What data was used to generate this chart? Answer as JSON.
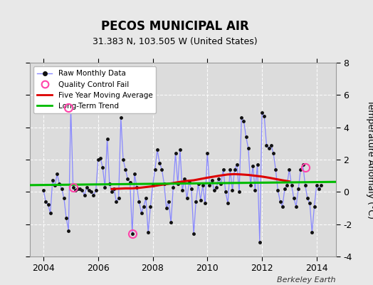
{
  "title": "PECOS MUNICIPAL AIR",
  "subtitle": "31.383 N, 103.505 W (United States)",
  "ylabel": "Temperature Anomaly (°C)",
  "credit": "Berkeley Earth",
  "ylim": [
    -4,
    8
  ],
  "yticks": [
    -4,
    -2,
    0,
    2,
    4,
    6,
    8
  ],
  "xlim": [
    2003.5,
    2014.7
  ],
  "xticks": [
    2004,
    2006,
    2008,
    2010,
    2012,
    2014
  ],
  "bg_color": "#e8e8e8",
  "plot_bg_color": "#dcdcdc",
  "raw_line_color": "#8888ff",
  "raw_marker_color": "#111111",
  "ma_color": "#dd0000",
  "trend_color": "#00bb00",
  "qc_color": "#ff44aa",
  "raw_data": [
    [
      2004.0,
      0.1
    ],
    [
      2004.083,
      -0.6
    ],
    [
      2004.167,
      -0.8
    ],
    [
      2004.25,
      -1.3
    ],
    [
      2004.333,
      0.7
    ],
    [
      2004.417,
      0.4
    ],
    [
      2004.5,
      1.1
    ],
    [
      2004.583,
      0.5
    ],
    [
      2004.667,
      0.2
    ],
    [
      2004.75,
      -0.4
    ],
    [
      2004.833,
      -1.6
    ],
    [
      2004.917,
      -2.4
    ],
    [
      2005.0,
      5.2
    ],
    [
      2005.083,
      0.3
    ],
    [
      2005.167,
      0.1
    ],
    [
      2005.25,
      0.2
    ],
    [
      2005.333,
      0.2
    ],
    [
      2005.417,
      0.1
    ],
    [
      2005.5,
      -0.2
    ],
    [
      2005.583,
      0.3
    ],
    [
      2005.667,
      0.1
    ],
    [
      2005.75,
      0.0
    ],
    [
      2005.833,
      -0.2
    ],
    [
      2005.917,
      0.1
    ],
    [
      2006.0,
      2.0
    ],
    [
      2006.083,
      2.1
    ],
    [
      2006.167,
      1.5
    ],
    [
      2006.25,
      0.3
    ],
    [
      2006.333,
      3.3
    ],
    [
      2006.417,
      0.5
    ],
    [
      2006.5,
      0.0
    ],
    [
      2006.583,
      0.2
    ],
    [
      2006.667,
      -0.6
    ],
    [
      2006.75,
      -0.4
    ],
    [
      2006.833,
      4.6
    ],
    [
      2006.917,
      2.0
    ],
    [
      2007.0,
      1.4
    ],
    [
      2007.083,
      0.8
    ],
    [
      2007.167,
      0.6
    ],
    [
      2007.25,
      -2.6
    ],
    [
      2007.333,
      1.1
    ],
    [
      2007.417,
      0.3
    ],
    [
      2007.5,
      -0.6
    ],
    [
      2007.583,
      -1.3
    ],
    [
      2007.667,
      -0.9
    ],
    [
      2007.75,
      -0.4
    ],
    [
      2007.833,
      -2.5
    ],
    [
      2007.917,
      -0.9
    ],
    [
      2008.0,
      0.4
    ],
    [
      2008.083,
      1.4
    ],
    [
      2008.167,
      2.6
    ],
    [
      2008.25,
      1.8
    ],
    [
      2008.333,
      1.4
    ],
    [
      2008.417,
      0.5
    ],
    [
      2008.5,
      -1.0
    ],
    [
      2008.583,
      -0.6
    ],
    [
      2008.667,
      -1.9
    ],
    [
      2008.75,
      0.3
    ],
    [
      2008.833,
      2.4
    ],
    [
      2008.917,
      0.5
    ],
    [
      2009.0,
      2.6
    ],
    [
      2009.083,
      0.1
    ],
    [
      2009.167,
      0.8
    ],
    [
      2009.25,
      -0.4
    ],
    [
      2009.333,
      0.6
    ],
    [
      2009.417,
      0.2
    ],
    [
      2009.5,
      -2.6
    ],
    [
      2009.583,
      -0.6
    ],
    [
      2009.667,
      0.5
    ],
    [
      2009.75,
      -0.5
    ],
    [
      2009.833,
      0.4
    ],
    [
      2009.917,
      -0.7
    ],
    [
      2010.0,
      2.4
    ],
    [
      2010.083,
      0.4
    ],
    [
      2010.167,
      0.7
    ],
    [
      2010.25,
      0.1
    ],
    [
      2010.333,
      0.3
    ],
    [
      2010.417,
      0.8
    ],
    [
      2010.5,
      0.5
    ],
    [
      2010.583,
      1.4
    ],
    [
      2010.667,
      0.0
    ],
    [
      2010.75,
      -0.7
    ],
    [
      2010.833,
      1.4
    ],
    [
      2010.917,
      0.1
    ],
    [
      2011.0,
      1.4
    ],
    [
      2011.083,
      1.7
    ],
    [
      2011.167,
      0.0
    ],
    [
      2011.25,
      4.6
    ],
    [
      2011.333,
      4.4
    ],
    [
      2011.417,
      3.4
    ],
    [
      2011.5,
      2.7
    ],
    [
      2011.583,
      0.4
    ],
    [
      2011.667,
      1.6
    ],
    [
      2011.75,
      0.1
    ],
    [
      2011.833,
      1.7
    ],
    [
      2011.917,
      -3.1
    ],
    [
      2012.0,
      4.9
    ],
    [
      2012.083,
      4.7
    ],
    [
      2012.167,
      2.9
    ],
    [
      2012.25,
      2.7
    ],
    [
      2012.333,
      2.9
    ],
    [
      2012.417,
      2.4
    ],
    [
      2012.5,
      1.4
    ],
    [
      2012.583,
      0.1
    ],
    [
      2012.667,
      -0.6
    ],
    [
      2012.75,
      -0.9
    ],
    [
      2012.833,
      0.2
    ],
    [
      2012.917,
      0.4
    ],
    [
      2013.0,
      1.4
    ],
    [
      2013.083,
      0.4
    ],
    [
      2013.167,
      -0.4
    ],
    [
      2013.25,
      -0.9
    ],
    [
      2013.333,
      0.2
    ],
    [
      2013.417,
      1.4
    ],
    [
      2013.5,
      1.7
    ],
    [
      2013.583,
      0.4
    ],
    [
      2013.667,
      -0.4
    ],
    [
      2013.75,
      -0.7
    ],
    [
      2013.833,
      -2.5
    ],
    [
      2013.917,
      -0.9
    ],
    [
      2014.0,
      0.4
    ],
    [
      2014.083,
      0.2
    ],
    [
      2014.167,
      0.4
    ]
  ],
  "qc_fails": [
    [
      2004.917,
      5.2
    ],
    [
      2005.083,
      0.3
    ],
    [
      2007.25,
      -2.6
    ],
    [
      2013.583,
      1.5
    ]
  ],
  "moving_avg": [
    [
      2006.5,
      0.18
    ],
    [
      2006.75,
      0.2
    ],
    [
      2007.0,
      0.22
    ],
    [
      2007.25,
      0.22
    ],
    [
      2007.5,
      0.25
    ],
    [
      2007.75,
      0.3
    ],
    [
      2008.0,
      0.35
    ],
    [
      2008.25,
      0.42
    ],
    [
      2008.5,
      0.48
    ],
    [
      2008.75,
      0.55
    ],
    [
      2009.0,
      0.62
    ],
    [
      2009.25,
      0.68
    ],
    [
      2009.5,
      0.72
    ],
    [
      2009.75,
      0.8
    ],
    [
      2010.0,
      0.88
    ],
    [
      2010.25,
      0.95
    ],
    [
      2010.5,
      1.02
    ],
    [
      2010.75,
      1.08
    ],
    [
      2011.0,
      1.1
    ],
    [
      2011.25,
      1.08
    ],
    [
      2011.5,
      1.05
    ],
    [
      2011.75,
      1.0
    ],
    [
      2012.0,
      0.95
    ],
    [
      2012.25,
      0.88
    ],
    [
      2012.5,
      0.8
    ],
    [
      2012.75,
      0.72
    ],
    [
      2013.0,
      0.65
    ]
  ],
  "trend_x": [
    2003.5,
    2014.7
  ],
  "trend_y": [
    0.42,
    0.62
  ]
}
